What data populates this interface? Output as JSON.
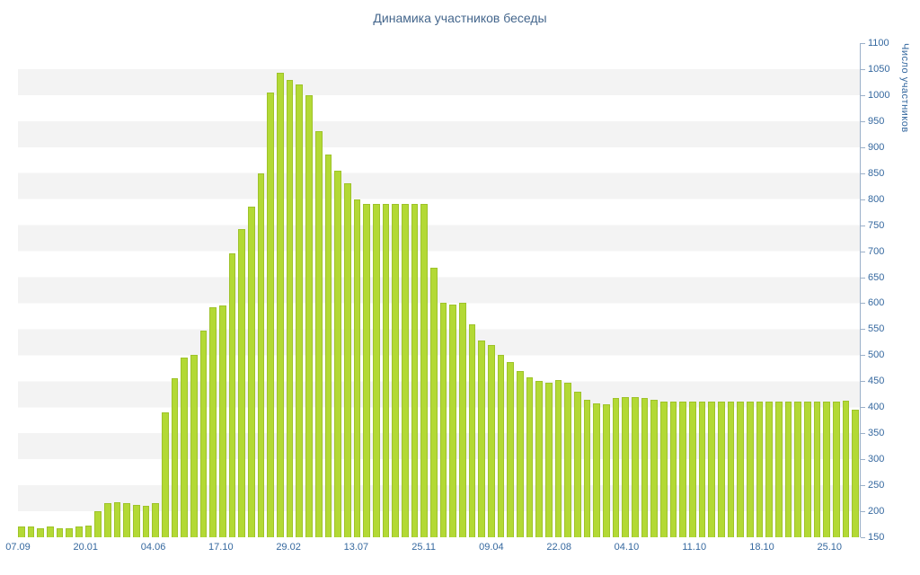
{
  "title": "Динамика участников беседы",
  "colors": {
    "background": "#ffffff",
    "bar_fill": "#b3d935",
    "bar_border": "#9ec32a",
    "title_text": "#44668c",
    "axis_text": "#35689f",
    "axis_line": "#9bb0c9",
    "stripe": "#f3f3f3"
  },
  "chart_data": {
    "type": "bar",
    "title": "Динамика участников беседы",
    "xlabel": "",
    "ylabel": "Число участников",
    "ylim": [
      150,
      1100
    ],
    "y_tick_step": 50,
    "grid": "striped-horizontal-bands",
    "legend": "none",
    "y_tick_labels": [
      "1100",
      "1050",
      "1000",
      "950",
      "900",
      "850",
      "800",
      "750",
      "700",
      "650",
      "600",
      "550",
      "500",
      "450",
      "400",
      "350",
      "300",
      "250",
      "200",
      "150"
    ],
    "x_tick_labels": [
      "07.09",
      "20.01",
      "04.06",
      "17.10",
      "29.02",
      "13.07",
      "25.11",
      "09.04",
      "22.08",
      "04.10",
      "11.10",
      "18.10",
      "25.10"
    ],
    "values": [
      170,
      170,
      168,
      170,
      168,
      168,
      170,
      172,
      200,
      215,
      217,
      215,
      213,
      210,
      215,
      390,
      455,
      495,
      500,
      548,
      592,
      596,
      695,
      742,
      785,
      850,
      1005,
      1043,
      1030,
      1020,
      1000,
      930,
      885,
      855,
      830,
      800,
      790,
      790,
      790,
      790,
      790,
      790,
      790,
      668,
      600,
      598,
      600,
      560,
      528,
      520,
      500,
      487,
      470,
      457,
      450,
      447,
      452,
      447,
      430,
      415,
      408,
      405,
      418,
      420,
      420,
      418,
      415,
      410,
      410,
      410,
      410,
      410,
      410,
      410,
      410,
      410,
      410,
      410,
      410,
      410,
      410,
      410,
      410,
      410,
      410,
      410,
      412,
      395
    ]
  }
}
